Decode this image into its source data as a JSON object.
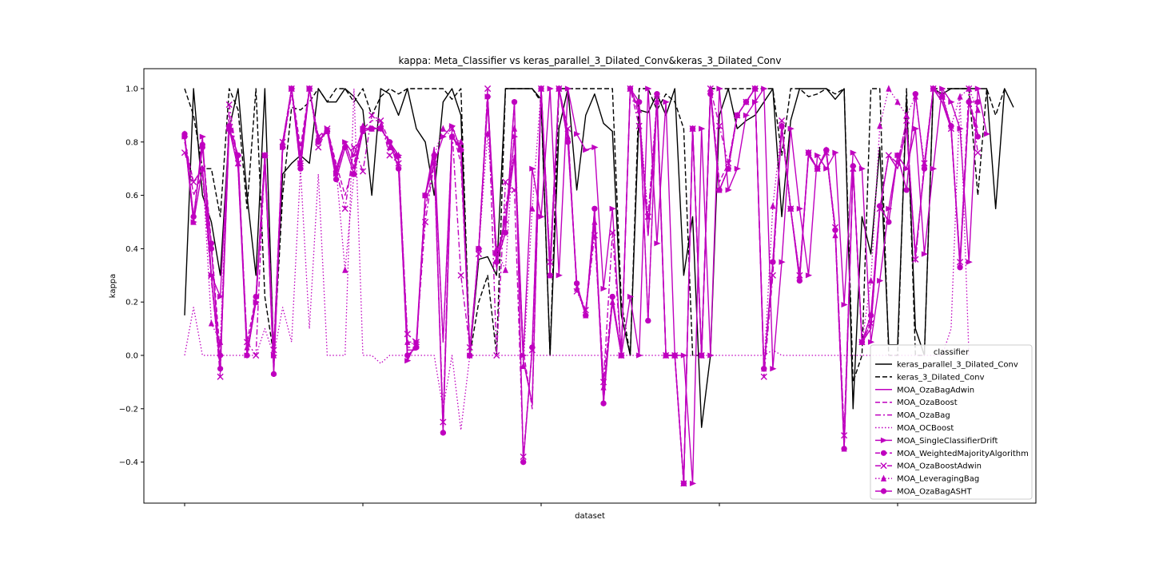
{
  "chart_data": {
    "type": "line",
    "title": "kappa: Meta_Classifier vs keras_parallel_3_Dilated_Conv&keras_3_Dilated_Conv",
    "xlabel": "dataset",
    "ylabel": "kappa",
    "xlim": [
      -4.5,
      95.5
    ],
    "ylim": [
      -0.555,
      1.07
    ],
    "yticks": [
      -0.4,
      -0.2,
      0.0,
      0.2,
      0.4,
      0.6,
      0.8,
      1.0
    ],
    "ytick_labels": [
      "−0.4",
      "−0.2",
      "0.0",
      "0.2",
      "0.4",
      "0.6",
      "0.8",
      "1.0"
    ],
    "xticks": [
      0,
      20,
      40,
      60,
      80
    ],
    "xtick_labels": [
      "",
      "",
      "",
      "",
      ""
    ],
    "grid": false,
    "legend": {
      "title": "classifier",
      "placement": "lower-right"
    },
    "series": [
      {
        "name": "keras_parallel_3_Dilated_Conv",
        "color": "#000000",
        "dash": "solid",
        "marker": "none",
        "values": [
          0.15,
          1.0,
          0.6,
          0.5,
          0.3,
          0.85,
          1.0,
          0.6,
          0.3,
          1.0,
          0.0,
          0.68,
          0.72,
          0.75,
          0.72,
          1.0,
          0.95,
          0.95,
          1.0,
          0.97,
          0.92,
          0.6,
          1.0,
          0.98,
          0.9,
          1.0,
          0.85,
          0.8,
          0.6,
          0.95,
          1.0,
          0.9,
          0.0,
          0.36,
          0.37,
          0.3,
          1.0,
          1.0,
          1.0,
          1.0,
          0.96,
          0.0,
          0.85,
          1.0,
          0.62,
          0.9,
          0.98,
          0.87,
          0.84,
          0.15,
          0.0,
          0.92,
          0.91,
          0.98,
          0.9,
          1.0,
          0.3,
          0.52,
          -0.27,
          0.0,
          0.9,
          1.0,
          0.85,
          0.88,
          0.9,
          0.95,
          1.0,
          0.52,
          0.88,
          1.0,
          1.0,
          1.0,
          1.0,
          0.96,
          1.0,
          -0.2,
          0.52,
          0.38,
          0.78,
          0.04,
          0.04,
          0.96,
          0.1,
          0.0,
          1.0,
          0.98,
          1.0,
          1.0,
          1.0,
          1.0,
          1.0,
          0.55,
          1.0,
          0.93,
          null,
          null
        ]
      },
      {
        "name": "keras_3_Dilated_Conv",
        "color": "#000000",
        "dash": "dashed",
        "marker": "none",
        "values": [
          1.0,
          0.9,
          0.7,
          0.7,
          0.52,
          1.0,
          0.92,
          0.55,
          1.0,
          0.22,
          0.0,
          0.6,
          0.93,
          0.92,
          0.95,
          1.0,
          0.95,
          1.0,
          1.0,
          0.95,
          1.0,
          0.9,
          0.97,
          1.0,
          0.98,
          1.0,
          1.0,
          1.0,
          1.0,
          1.0,
          0.96,
          1.0,
          0.0,
          0.2,
          0.3,
          0.0,
          1.0,
          1.0,
          1.0,
          1.0,
          0.95,
          0.0,
          1.0,
          1.0,
          1.0,
          1.0,
          1.0,
          1.0,
          1.0,
          0.2,
          0.0,
          1.0,
          1.0,
          0.92,
          0.98,
          0.95,
          0.85,
          0.0,
          0.0,
          1.0,
          1.0,
          1.0,
          1.0,
          1.0,
          1.0,
          1.0,
          1.0,
          0.75,
          1.0,
          1.0,
          0.97,
          0.98,
          1.0,
          0.98,
          1.0,
          -0.1,
          0.0,
          1.0,
          1.0,
          0.0,
          0.0,
          1.0,
          0.0,
          0.0,
          1.0,
          1.0,
          1.0,
          1.0,
          1.0,
          0.6,
          1.0,
          0.9,
          1.0,
          null,
          null,
          null
        ]
      },
      {
        "name": "MOA_OzaBagAdwin",
        "color": "#bf00bf",
        "dash": "solid",
        "marker": "none",
        "values": [
          0.82,
          0.5,
          0.7,
          0.3,
          -0.05,
          0.85,
          0.7,
          0.0,
          0.2,
          0.72,
          0.0,
          0.78,
          1.0,
          0.75,
          1.0,
          0.8,
          0.85,
          0.7,
          0.8,
          0.7,
          0.85,
          0.85,
          0.85,
          0.8,
          0.73,
          0.02,
          0.02,
          0.6,
          0.78,
          0.05,
          0.82,
          0.78,
          0.0,
          0.4,
          0.95,
          0.35,
          0.5,
          0.75,
          -0.02,
          -0.18,
          1.0,
          0.33,
          1.0,
          0.83,
          0.26,
          0.15,
          0.5,
          -0.15,
          0.2,
          0.0,
          1.0,
          0.92,
          0.45,
          0.95,
          0.0,
          0.0,
          -0.48,
          0.85,
          0.0,
          1.0,
          0.62,
          0.7,
          0.9,
          0.95,
          1.0,
          -0.05,
          0.35,
          0.85,
          0.55,
          0.3,
          0.75,
          0.7,
          0.76,
          0.47,
          -0.35,
          0.7,
          0.05,
          0.1,
          0.55,
          0.75,
          0.7,
          0.85,
          0.38,
          0.7,
          1.0,
          0.95,
          0.85,
          0.35,
          0.95,
          0.83,
          null,
          null,
          null,
          null,
          null,
          null
        ]
      },
      {
        "name": "MOA_OzaBoost",
        "color": "#bf00bf",
        "dash": "dashed",
        "marker": "none",
        "values": [
          0.8,
          0.65,
          0.7,
          0.3,
          -0.05,
          0.9,
          0.72,
          0.05,
          0.22,
          0.75,
          0.02,
          0.8,
          1.0,
          0.78,
          1.0,
          0.82,
          0.85,
          0.72,
          0.6,
          0.72,
          0.85,
          0.88,
          0.88,
          0.8,
          0.75,
          0.05,
          0.05,
          0.55,
          0.72,
          -0.25,
          0.85,
          0.72,
          0.02,
          0.4,
          0.96,
          0.32,
          0.55,
          0.75,
          0.02,
          -0.2,
          1.0,
          0.35,
          1.0,
          0.85,
          0.25,
          0.17,
          0.5,
          -0.1,
          0.22,
          0.0,
          1.0,
          0.9,
          0.45,
          0.95,
          0.0,
          0.0,
          -0.48,
          0.85,
          0.0,
          1.0,
          0.65,
          0.72,
          0.9,
          0.95,
          1.0,
          -0.05,
          0.32,
          0.85,
          0.55,
          0.3,
          0.75,
          0.7,
          0.76,
          0.48,
          -0.3,
          0.7,
          0.05,
          0.12,
          0.55,
          0.75,
          0.72,
          0.88,
          0.35,
          0.72,
          1.0,
          0.95,
          0.85,
          0.35,
          0.95,
          0.85,
          null,
          null,
          null,
          null,
          null,
          null
        ]
      },
      {
        "name": "MOA_OzaBag",
        "color": "#bf00bf",
        "dash": "dashdot",
        "marker": "none",
        "values": [
          0.82,
          0.6,
          0.68,
          0.28,
          -0.05,
          0.86,
          0.7,
          0.02,
          0.2,
          0.72,
          0.0,
          0.78,
          0.98,
          0.75,
          1.0,
          0.8,
          0.85,
          0.7,
          0.8,
          0.7,
          0.85,
          0.85,
          0.85,
          0.8,
          0.72,
          0.03,
          0.03,
          0.6,
          0.76,
          0.05,
          0.82,
          0.78,
          0.02,
          0.4,
          0.95,
          0.35,
          0.52,
          0.75,
          -0.02,
          -0.18,
          1.0,
          0.33,
          1.0,
          0.83,
          0.26,
          0.15,
          0.5,
          -0.15,
          0.2,
          0.0,
          1.0,
          0.92,
          0.45,
          0.95,
          0.0,
          0.0,
          -0.48,
          0.85,
          0.0,
          1.0,
          0.62,
          0.7,
          0.9,
          0.95,
          1.0,
          -0.05,
          0.35,
          0.85,
          0.55,
          0.3,
          0.75,
          0.7,
          0.76,
          0.47,
          -0.35,
          0.7,
          0.05,
          0.1,
          0.55,
          0.75,
          0.7,
          0.85,
          0.38,
          0.7,
          1.0,
          0.95,
          0.85,
          0.35,
          0.95,
          0.83,
          null,
          null,
          null,
          null,
          null,
          null
        ]
      },
      {
        "name": "MOA_OCBoost",
        "color": "#bf00bf",
        "dash": "dotted",
        "marker": "none",
        "values": [
          0.0,
          0.18,
          0.0,
          0.0,
          0.0,
          0.0,
          0.0,
          0.0,
          0.0,
          0.1,
          0.0,
          0.18,
          0.05,
          0.7,
          0.1,
          0.68,
          0.0,
          0.0,
          0.0,
          1.0,
          0.0,
          0.0,
          -0.03,
          0.0,
          0.0,
          0.0,
          0.0,
          0.0,
          0.0,
          -0.2,
          0.0,
          -0.28,
          0.0,
          0.0,
          0.0,
          0.0,
          0.0,
          0.0,
          0.0,
          0.0,
          0.0,
          0.0,
          0.0,
          0.0,
          0.0,
          0.0,
          0.0,
          0.0,
          0.0,
          0.0,
          0.0,
          0.0,
          0.0,
          0.0,
          0.0,
          0.0,
          0.0,
          0.0,
          0.0,
          0.0,
          0.0,
          0.0,
          0.0,
          0.0,
          0.0,
          0.0,
          0.02,
          0.0,
          0.0,
          0.0,
          0.0,
          0.0,
          0.0,
          0.0,
          0.0,
          0.0,
          0.0,
          0.0,
          0.0,
          0.0,
          0.0,
          0.0,
          0.0,
          0.0,
          0.0,
          0.0,
          0.1,
          0.97,
          0.0,
          null,
          null,
          null,
          null,
          null,
          null,
          null
        ]
      },
      {
        "name": "MOA_SingleClassifierDrift",
        "color": "#bf00bf",
        "dash": "solid",
        "marker": "triangle-right",
        "values": [
          0.82,
          0.5,
          0.82,
          0.3,
          0.22,
          0.85,
          0.75,
          0.0,
          0.2,
          0.75,
          0.0,
          0.78,
          1.0,
          0.72,
          1.0,
          0.8,
          0.85,
          0.68,
          0.8,
          0.75,
          0.85,
          0.85,
          0.85,
          0.8,
          0.75,
          -0.02,
          0.05,
          0.6,
          0.72,
          0.82,
          0.86,
          0.77,
          0.0,
          0.4,
          0.97,
          0.38,
          0.5,
          0.82,
          0.0,
          0.7,
          0.52,
          1.0,
          0.3,
          1.0,
          0.83,
          0.77,
          0.78,
          0.25,
          0.55,
          0.0,
          0.22,
          0.0,
          1.0,
          0.42,
          0.95,
          0.0,
          0.0,
          -0.48,
          0.85,
          0.0,
          1.0,
          0.62,
          0.7,
          0.9,
          0.95,
          1.0,
          -0.05,
          0.35,
          0.85,
          0.55,
          0.3,
          0.75,
          0.7,
          0.76,
          0.19,
          0.76,
          0.7,
          0.05,
          0.28,
          0.55,
          0.75,
          0.7,
          0.85,
          0.38,
          0.7,
          1.0,
          0.95,
          0.85,
          0.35,
          1.0,
          0.83,
          null,
          null,
          null,
          null,
          null,
          null
        ]
      },
      {
        "name": "MOA_WeightedMajorityAlgorithm",
        "color": "#bf00bf",
        "dash": "dashed",
        "marker": "circle",
        "values": [
          0.82,
          0.52,
          0.79,
          0.42,
          0.0,
          0.86,
          0.75,
          0.0,
          0.22,
          0.75,
          -0.07,
          0.78,
          1.0,
          0.7,
          1.0,
          0.8,
          0.84,
          0.66,
          0.78,
          0.68,
          0.84,
          0.85,
          0.85,
          0.8,
          0.7,
          0.0,
          0.03,
          0.6,
          0.75,
          -0.29,
          0.82,
          0.77,
          0.0,
          0.4,
          0.97,
          0.35,
          0.46,
          0.95,
          -0.4,
          0.03,
          1.0,
          0.3,
          1.0,
          0.8,
          0.27,
          0.15,
          0.55,
          -0.18,
          0.22,
          0.0,
          1.0,
          0.95,
          0.13,
          0.98,
          0.0,
          0.0,
          -0.48,
          0.85,
          0.0,
          0.98,
          0.62,
          0.7,
          0.9,
          0.95,
          1.0,
          -0.05,
          0.35,
          0.86,
          0.55,
          0.28,
          0.76,
          0.7,
          0.77,
          0.47,
          -0.35,
          0.71,
          0.05,
          0.15,
          0.56,
          0.5,
          0.75,
          0.62,
          0.98,
          0.7,
          1.0,
          0.97,
          0.86,
          0.33,
          0.95,
          0.82,
          null,
          null,
          null,
          null,
          null,
          null
        ]
      },
      {
        "name": "MOA_OzaBoostAdwin",
        "color": "#bf00bf",
        "dash": "dashdot",
        "marker": "x",
        "values": [
          0.76,
          0.65,
          0.7,
          0.3,
          -0.08,
          0.94,
          0.72,
          0.05,
          0.0,
          0.75,
          0.02,
          0.8,
          1.0,
          0.72,
          1.0,
          0.78,
          0.85,
          0.7,
          0.55,
          0.78,
          0.69,
          0.9,
          0.88,
          0.75,
          0.72,
          0.08,
          0.05,
          0.5,
          0.72,
          -0.25,
          0.85,
          0.3,
          0.03,
          0.38,
          1.0,
          0.0,
          0.65,
          0.62,
          -0.38,
          0.02,
          1.0,
          0.35,
          1.0,
          0.85,
          0.24,
          0.17,
          0.45,
          -0.1,
          0.46,
          0.0,
          1.0,
          0.86,
          0.52,
          0.96,
          0.0,
          0.0,
          -0.48,
          0.85,
          0.0,
          1.0,
          0.86,
          0.72,
          0.9,
          0.95,
          1.0,
          -0.08,
          0.3,
          0.88,
          0.55,
          0.3,
          0.76,
          0.7,
          0.76,
          0.48,
          -0.3,
          0.7,
          0.05,
          0.12,
          0.55,
          0.75,
          0.72,
          0.88,
          0.36,
          0.72,
          1.0,
          0.97,
          0.85,
          0.35,
          1.0,
          0.76,
          null,
          null,
          null,
          null,
          null,
          null
        ]
      },
      {
        "name": "MOA_LeveragingBag",
        "color": "#bf00bf",
        "dash": "dotted",
        "marker": "triangle-up",
        "values": [
          0.83,
          0.5,
          0.7,
          0.12,
          0.05,
          0.85,
          0.72,
          0.03,
          0.2,
          0.75,
          0.0,
          0.8,
          1.0,
          0.72,
          1.0,
          0.82,
          0.84,
          0.7,
          0.32,
          0.68,
          0.86,
          0.85,
          0.86,
          0.78,
          0.75,
          0.05,
          0.04,
          0.6,
          0.75,
          0.85,
          0.82,
          0.8,
          0.0,
          0.4,
          0.83,
          0.4,
          0.32,
          0.85,
          -0.04,
          0.55,
          1.0,
          0.3,
          1.0,
          0.82,
          0.25,
          0.15,
          0.5,
          -0.12,
          0.2,
          0.0,
          1.0,
          0.92,
          0.52,
          0.95,
          0.0,
          0.0,
          -0.48,
          0.85,
          0.0,
          1.0,
          0.62,
          0.7,
          0.9,
          0.95,
          1.0,
          -0.05,
          0.56,
          0.86,
          0.55,
          0.3,
          0.76,
          0.7,
          0.77,
          0.45,
          -0.35,
          0.7,
          0.05,
          0.28,
          0.86,
          1.0,
          0.95,
          0.9,
          0.97,
          0.72,
          1.0,
          0.98,
          0.86,
          0.97,
          1.0,
          0.92,
          null,
          null,
          null,
          null,
          null,
          null
        ]
      },
      {
        "name": "MOA_OzaBagASHT",
        "color": "#bf00bf",
        "dash": "solid",
        "marker": "circle",
        "values": [
          0.83,
          0.52,
          0.78,
          0.4,
          -0.05,
          0.85,
          0.75,
          0.0,
          0.22,
          0.75,
          -0.07,
          0.78,
          1.0,
          0.7,
          1.0,
          0.8,
          0.84,
          0.66,
          0.78,
          0.68,
          0.84,
          0.85,
          0.85,
          0.8,
          0.7,
          0.0,
          0.03,
          0.6,
          0.75,
          -0.29,
          0.82,
          0.77,
          0.0,
          0.4,
          0.97,
          0.35,
          0.46,
          0.95,
          -0.4,
          0.03,
          1.0,
          0.3,
          1.0,
          0.8,
          0.27,
          0.15,
          0.55,
          -0.18,
          0.22,
          0.0,
          1.0,
          0.95,
          0.13,
          0.98,
          0.0,
          0.0,
          -0.48,
          0.85,
          0.0,
          0.98,
          0.62,
          0.7,
          0.9,
          0.95,
          1.0,
          -0.05,
          0.35,
          0.86,
          0.55,
          0.28,
          0.76,
          0.7,
          0.77,
          0.47,
          -0.35,
          0.71,
          0.05,
          0.15,
          0.56,
          0.5,
          0.75,
          0.62,
          0.98,
          0.7,
          1.0,
          0.97,
          0.86,
          0.33,
          0.95,
          0.95,
          null,
          null,
          null,
          null,
          null,
          null
        ]
      }
    ]
  }
}
